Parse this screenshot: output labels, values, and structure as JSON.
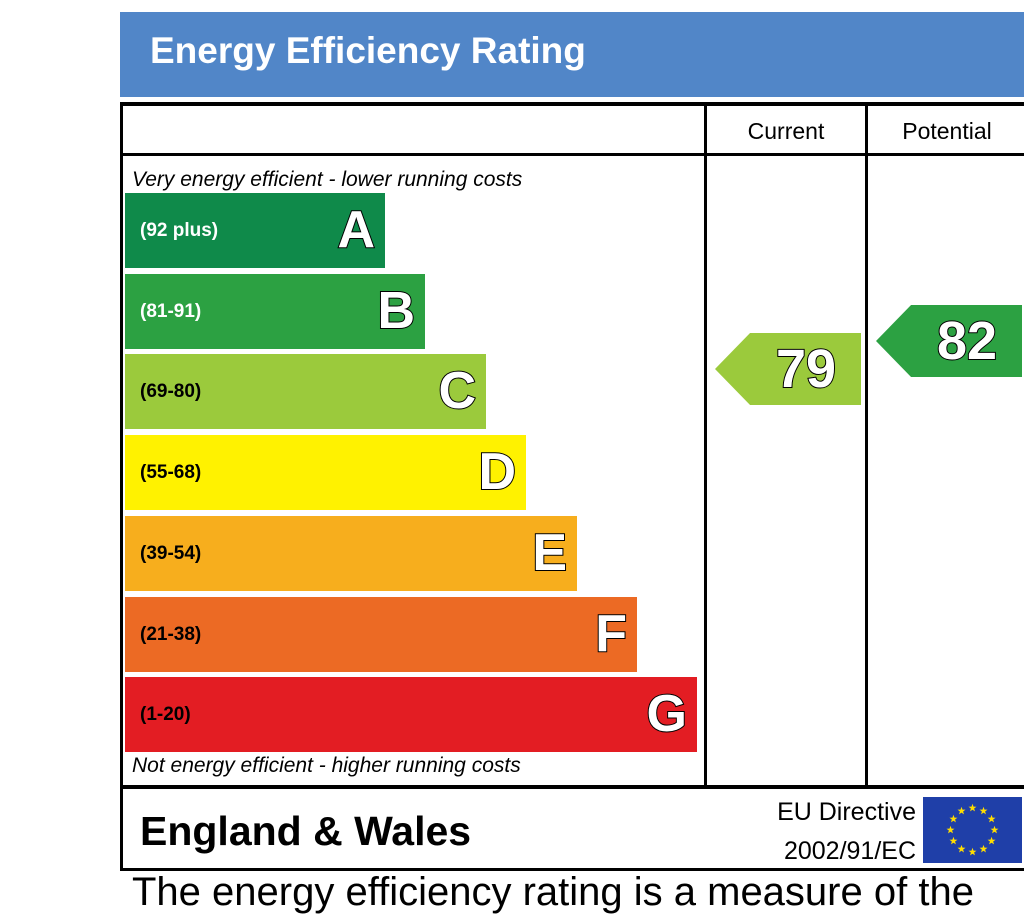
{
  "header": {
    "title": "Energy Efficiency Rating"
  },
  "columns": {
    "current": "Current",
    "potential": "Potential"
  },
  "notes": {
    "top": "Very energy efficient - lower running costs",
    "bottom": "Not energy efficient - higher running costs"
  },
  "footer": {
    "region": "England & Wales",
    "directive_line1": "EU Directive",
    "directive_line2": "2002/91/EC",
    "flag": "eu-flag-icon"
  },
  "continuation_text": "The energy efficiency rating is a measure of the",
  "chart_data": {
    "type": "bar",
    "categories": [
      "A",
      "B",
      "C",
      "D",
      "E",
      "F",
      "G"
    ],
    "ranges": [
      "(92 plus)",
      "(81-91)",
      "(69-80)",
      "(55-68)",
      "(39-54)",
      "(21-38)",
      "(1-20)"
    ],
    "colors": [
      "#0f8a4a",
      "#2ca142",
      "#9bca3c",
      "#fff200",
      "#f7ae1d",
      "#ec6a24",
      "#e31d23"
    ],
    "range_text_colors": [
      "#ffffff",
      "#ffffff",
      "#000000",
      "#000000",
      "#000000",
      "#000000",
      "#000000"
    ],
    "current": {
      "value": 79,
      "band": "C",
      "color": "#9bca3c"
    },
    "potential": {
      "value": 82,
      "band": "B",
      "color": "#2ca142"
    }
  }
}
